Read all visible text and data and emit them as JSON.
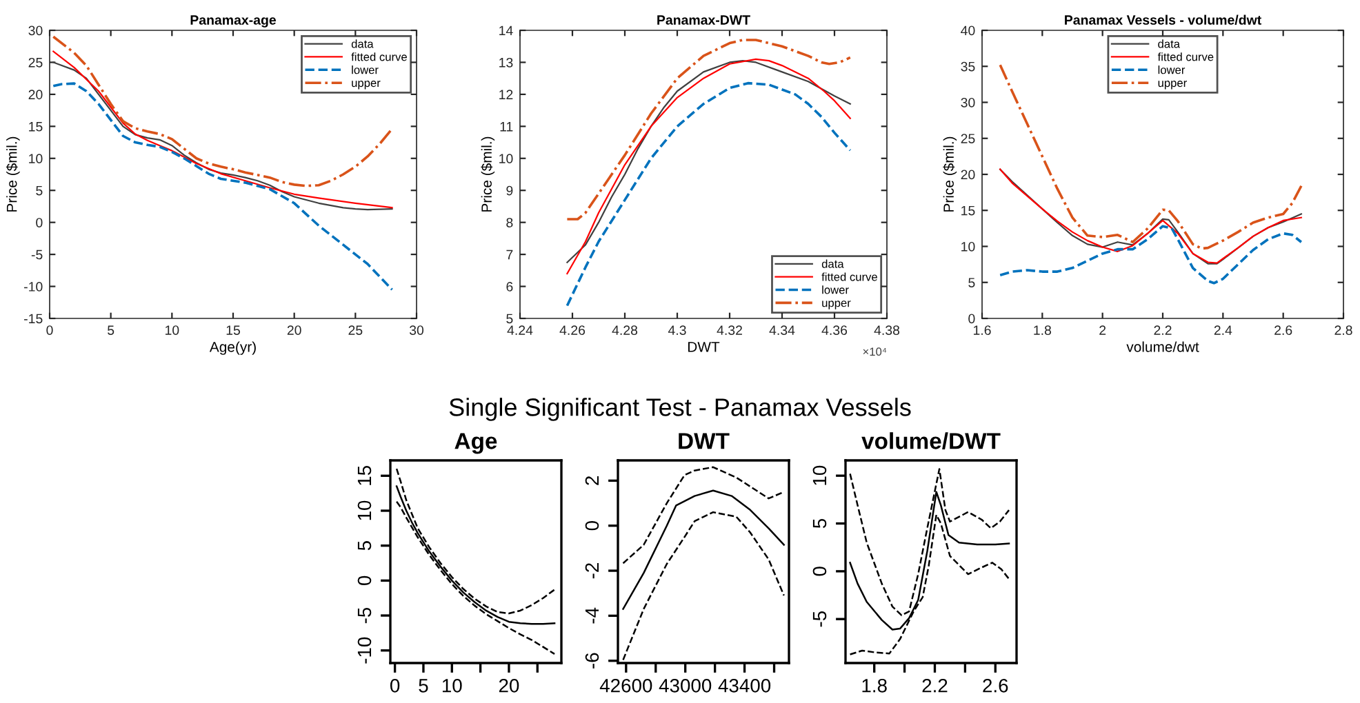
{
  "chart_data": [
    {
      "type": "line",
      "title": "Panamax-age",
      "xlabel": "Age(yr)",
      "ylabel": "Price ($mil.)",
      "xlim": [
        0,
        30
      ],
      "ylim": [
        -15,
        30
      ],
      "xticks": [
        0,
        5,
        10,
        15,
        20,
        25,
        30
      ],
      "yticks": [
        -15,
        -10,
        -5,
        0,
        5,
        10,
        15,
        20,
        25,
        30
      ],
      "legend": "top right",
      "series": [
        {
          "name": "data",
          "color": "#404040",
          "line_style": "solid",
          "x": [
            0.3,
            2,
            3,
            4,
            5,
            6,
            7,
            8,
            9,
            10,
            11,
            12,
            13,
            14,
            15,
            16,
            17,
            18,
            19,
            20,
            22,
            24,
            25,
            26,
            28
          ],
          "values": [
            25,
            23.8,
            22.5,
            20,
            17.5,
            15,
            13.7,
            13.2,
            12.9,
            12,
            10.5,
            9.3,
            8.3,
            7.7,
            7.4,
            7,
            6.5,
            5.8,
            4.8,
            4,
            3,
            2.3,
            2.1,
            2,
            2.1
          ]
        },
        {
          "name": "fitted curve",
          "color": "#ff0000",
          "line_style": "solid",
          "x": [
            0.3,
            2,
            4,
            5,
            6,
            7,
            8,
            9,
            10,
            12,
            14,
            16,
            18,
            20,
            22,
            25,
            28
          ],
          "values": [
            26.7,
            24.2,
            20.5,
            18,
            15.5,
            13.8,
            12.8,
            12,
            11.2,
            9.2,
            7.6,
            6.5,
            5.4,
            4.4,
            3.8,
            3,
            2.3
          ]
        },
        {
          "name": "lower",
          "color": "#0072bd",
          "line_style": "dashed",
          "x": [
            0.3,
            1,
            2,
            3,
            4,
            5,
            6,
            7,
            8,
            9,
            10,
            11,
            12,
            13,
            14,
            16,
            18,
            20,
            22,
            24,
            26,
            28
          ],
          "values": [
            21.3,
            21.6,
            21.7,
            20.5,
            18.5,
            16,
            13.5,
            12.5,
            12.1,
            11.8,
            11,
            10,
            8.8,
            7.6,
            6.8,
            6.2,
            5.2,
            3,
            -0.5,
            -3.5,
            -6.5,
            -10.5
          ]
        },
        {
          "name": "upper",
          "color": "#d95319",
          "line_style": "dashdot",
          "x": [
            0.3,
            2,
            3,
            4,
            5,
            6,
            7,
            8,
            9,
            10,
            11,
            12,
            13,
            14,
            15,
            16,
            18,
            19,
            20,
            21,
            22,
            23,
            24,
            25,
            26,
            27,
            28
          ],
          "values": [
            29,
            26.5,
            24.5,
            21.5,
            18.5,
            15.8,
            14.7,
            14.2,
            13.8,
            13,
            11.5,
            10,
            9.2,
            8.7,
            8.3,
            7.8,
            7,
            6.3,
            5.9,
            5.7,
            5.8,
            6.5,
            7.5,
            8.7,
            10.3,
            12.3,
            14.6
          ]
        }
      ]
    },
    {
      "type": "line",
      "title": "Panamax-DWT",
      "xlabel": "DWT",
      "ylabel": "Price ($mil.)",
      "annotations": [
        "×10⁴"
      ],
      "xlim": [
        4.24,
        4.38
      ],
      "ylim": [
        5,
        14
      ],
      "xticks": [
        4.24,
        4.26,
        4.28,
        4.3,
        4.32,
        4.34,
        4.36,
        4.38
      ],
      "yticks": [
        5,
        6,
        7,
        8,
        9,
        10,
        11,
        12,
        13,
        14
      ],
      "legend": "bottom right",
      "series": [
        {
          "name": "data",
          "color": "#404040",
          "line_style": "solid",
          "x": [
            4.258,
            4.265,
            4.27,
            4.275,
            4.28,
            4.285,
            4.29,
            4.295,
            4.3,
            4.31,
            4.32,
            4.325,
            4.33,
            4.34,
            4.35,
            4.36,
            4.366
          ],
          "values": [
            6.75,
            7.3,
            8,
            8.8,
            9.5,
            10.3,
            11,
            11.6,
            12.1,
            12.7,
            13,
            13.05,
            13,
            12.7,
            12.4,
            11.95,
            11.7
          ]
        },
        {
          "name": "fitted curve",
          "color": "#ff0000",
          "line_style": "solid",
          "x": [
            4.258,
            4.265,
            4.27,
            4.28,
            4.29,
            4.3,
            4.31,
            4.32,
            4.33,
            4.335,
            4.34,
            4.35,
            4.356,
            4.36,
            4.366
          ],
          "values": [
            6.4,
            7.4,
            8.3,
            9.8,
            11,
            11.9,
            12.5,
            12.95,
            13.1,
            13.05,
            12.9,
            12.5,
            12.1,
            11.8,
            11.25
          ]
        },
        {
          "name": "lower",
          "color": "#0072bd",
          "line_style": "dashed",
          "x": [
            4.258,
            4.265,
            4.27,
            4.28,
            4.29,
            4.3,
            4.31,
            4.32,
            4.327,
            4.335,
            4.345,
            4.35,
            4.355,
            4.36,
            4.366
          ],
          "values": [
            5.4,
            6.6,
            7.4,
            8.7,
            10,
            11,
            11.7,
            12.2,
            12.35,
            12.3,
            12,
            11.7,
            11.3,
            10.8,
            10.25
          ]
        },
        {
          "name": "upper",
          "color": "#d95319",
          "line_style": "dashdot",
          "x": [
            4.258,
            4.262,
            4.265,
            4.27,
            4.28,
            4.29,
            4.3,
            4.31,
            4.32,
            4.325,
            4.33,
            4.34,
            4.35,
            4.355,
            4.358,
            4.362,
            4.366
          ],
          "values": [
            8.1,
            8.1,
            8.3,
            8.9,
            10.1,
            11.4,
            12.5,
            13.2,
            13.6,
            13.7,
            13.7,
            13.5,
            13.2,
            13,
            12.95,
            13,
            13.15
          ]
        }
      ]
    },
    {
      "type": "line",
      "title": "Panamax Vessels - volume/dwt",
      "xlabel": "volume/dwt",
      "ylabel": "Price ($mil.)",
      "xlim": [
        1.6,
        2.8
      ],
      "ylim": [
        0,
        40
      ],
      "xticks": [
        1.6,
        1.8,
        2,
        2.2,
        2.4,
        2.6,
        2.8
      ],
      "yticks": [
        0,
        5,
        10,
        15,
        20,
        25,
        30,
        35,
        40
      ],
      "legend": "top",
      "series": [
        {
          "name": "data",
          "color": "#404040",
          "line_style": "solid",
          "x": [
            1.66,
            1.7,
            1.8,
            1.85,
            1.9,
            1.95,
            2.0,
            2.05,
            2.1,
            2.15,
            2.2,
            2.22,
            2.25,
            2.3,
            2.35,
            2.38,
            2.4,
            2.45,
            2.5,
            2.55,
            2.6,
            2.66
          ],
          "values": [
            20.7,
            19,
            15.2,
            13.3,
            11.5,
            10.3,
            9.9,
            10.6,
            10.2,
            11.8,
            13.8,
            13.7,
            12,
            9,
            7.6,
            7.6,
            8.2,
            9.8,
            11.4,
            12.6,
            13.4,
            14.5
          ]
        },
        {
          "name": "fitted curve",
          "color": "#ff0000",
          "line_style": "solid",
          "x": [
            1.66,
            1.7,
            1.8,
            1.85,
            1.9,
            1.95,
            2.0,
            2.05,
            2.1,
            2.15,
            2.2,
            2.25,
            2.3,
            2.35,
            2.38,
            2.4,
            2.45,
            2.5,
            2.55,
            2.6,
            2.66
          ],
          "values": [
            20.7,
            18.8,
            15.2,
            13.5,
            12,
            10.8,
            9.9,
            9.3,
            10.1,
            11.8,
            13.6,
            11.8,
            9,
            7.8,
            7.7,
            8.3,
            9.8,
            11.4,
            12.6,
            13.6,
            14
          ]
        },
        {
          "name": "lower",
          "color": "#0072bd",
          "line_style": "dashed",
          "x": [
            1.66,
            1.7,
            1.75,
            1.8,
            1.85,
            1.9,
            1.95,
            2.0,
            2.05,
            2.1,
            2.15,
            2.2,
            2.23,
            2.25,
            2.3,
            2.35,
            2.37,
            2.4,
            2.45,
            2.5,
            2.55,
            2.6,
            2.63,
            2.66
          ],
          "values": [
            6,
            6.5,
            6.7,
            6.5,
            6.5,
            7,
            8,
            9,
            9.6,
            9.6,
            11,
            12.8,
            12.5,
            11,
            7,
            5.2,
            4.9,
            5.5,
            7.5,
            9.5,
            11,
            11.8,
            11.6,
            10.6
          ]
        },
        {
          "name": "upper",
          "color": "#d95319",
          "line_style": "dashdot",
          "x": [
            1.66,
            1.7,
            1.75,
            1.8,
            1.85,
            1.9,
            1.95,
            2.0,
            2.05,
            2.1,
            2.15,
            2.2,
            2.22,
            2.25,
            2.3,
            2.33,
            2.35,
            2.4,
            2.45,
            2.5,
            2.55,
            2.6,
            2.63,
            2.66
          ],
          "values": [
            35.2,
            31.5,
            27,
            22.5,
            18,
            14,
            11.5,
            11.3,
            11.6,
            10.6,
            12.5,
            15.1,
            15,
            13.5,
            10.3,
            9.7,
            9.8,
            10.8,
            12,
            13.3,
            14,
            14.5,
            16,
            18.4
          ]
        }
      ]
    },
    {
      "type": "line",
      "title": "Age",
      "annotations": [
        "Single Significant Test - Panamax Vessels"
      ],
      "xlim": [
        -0.8,
        29.2
      ],
      "ylim": [
        -11.8,
        17.2
      ],
      "xticks": [
        0,
        5,
        10,
        {
          "value": 15,
          "label": null
        },
        20,
        {
          "value": 25,
          "label": null
        }
      ],
      "yticks": [
        -10,
        -5,
        0,
        5,
        10,
        15
      ],
      "series": [
        {
          "color": "#000000",
          "line_style": "solid",
          "x": [
            0.3,
            1,
            2,
            3,
            4,
            5,
            6,
            8,
            10,
            12,
            14,
            16,
            18,
            20,
            22,
            24,
            26,
            28
          ],
          "values": [
            13.5,
            12,
            10,
            8.3,
            6.8,
            5.5,
            4.2,
            2,
            0,
            -1.7,
            -3.1,
            -4.3,
            -5.2,
            -5.9,
            -6.1,
            -6.2,
            -6.2,
            -6.1
          ]
        },
        {
          "color": "#000000",
          "line_style": "dashed",
          "x": [
            0.3,
            1,
            2,
            4,
            6,
            8,
            10,
            12,
            14,
            16,
            18,
            20,
            22,
            24,
            26,
            28
          ],
          "values": [
            16,
            14.2,
            11.5,
            7.5,
            4.8,
            2.5,
            0.5,
            -1.2,
            -2.6,
            -3.7,
            -4.5,
            -4.7,
            -4.3,
            -3.5,
            -2.5,
            -1.3
          ]
        },
        {
          "color": "#000000",
          "line_style": "dashed",
          "x": [
            0.3,
            1,
            2,
            4,
            6,
            8,
            10,
            12,
            14,
            16,
            18,
            20,
            22,
            24,
            26,
            28
          ],
          "values": [
            11.3,
            10.5,
            9,
            6.2,
            3.7,
            1.5,
            -0.5,
            -2.2,
            -3.6,
            -4.8,
            -5.8,
            -6.8,
            -7.7,
            -8.5,
            -9.5,
            -10.5
          ]
        }
      ]
    },
    {
      "type": "line",
      "title": "DWT",
      "xlim": [
        42545,
        43700
      ],
      "ylim": [
        -6.1,
        2.9
      ],
      "xticks": [
        42600,
        {
          "value": 42800,
          "label": null
        },
        43000,
        {
          "value": 43200,
          "label": null
        },
        43400,
        {
          "value": 43600,
          "label": null
        }
      ],
      "yticks": [
        -6,
        -4,
        -2,
        0,
        2
      ],
      "series": [
        {
          "color": "#000000",
          "line_style": "solid",
          "x": [
            42580,
            42719,
            42875,
            42938,
            43063,
            43188,
            43313,
            43438,
            43563,
            43666
          ],
          "values": [
            -3.7,
            -2.1,
            0,
            0.9,
            1.32,
            1.56,
            1.32,
            0.7,
            -0.12,
            -0.85
          ]
        },
        {
          "color": "#000000",
          "line_style": "dashed",
          "x": [
            42580,
            42719,
            42875,
            42995,
            43063,
            43188,
            43344,
            43563,
            43666
          ],
          "values": [
            -1.67,
            -0.85,
            1,
            2.25,
            2.45,
            2.6,
            2.14,
            1.21,
            1.5
          ]
        },
        {
          "color": "#000000",
          "line_style": "dashed",
          "x": [
            42580,
            42719,
            42875,
            42995,
            43063,
            43188,
            43344,
            43438,
            43563,
            43666
          ],
          "values": [
            -5.96,
            -3.7,
            -1.7,
            -0.5,
            0.2,
            0.6,
            0.4,
            -0.3,
            -1.5,
            -3.1
          ]
        }
      ]
    },
    {
      "type": "line",
      "title": "volume/DWT",
      "xlim": [
        1.61,
        2.74
      ],
      "ylim": [
        -9.6,
        11.6
      ],
      "xticks": [
        1.8,
        {
          "value": 2.0,
          "label": null
        },
        2.2,
        {
          "value": 2.4,
          "label": null
        },
        2.6
      ],
      "yticks": [
        -5,
        0,
        5,
        10
      ],
      "series": [
        {
          "color": "#000000",
          "line_style": "solid",
          "x": [
            1.64,
            1.69,
            1.75,
            1.85,
            1.92,
            1.97,
            2.03,
            2.09,
            2.15,
            2.21,
            2.24,
            2.29,
            2.36,
            2.48,
            2.6,
            2.69
          ],
          "values": [
            0.9,
            -1.3,
            -3.2,
            -5.1,
            -6.1,
            -6,
            -4.9,
            -3,
            2.1,
            8.3,
            6.9,
            3.8,
            3,
            2.8,
            2.8,
            2.9
          ]
        },
        {
          "color": "#000000",
          "line_style": "dashed",
          "x": [
            1.64,
            1.69,
            1.75,
            1.85,
            1.92,
            1.98,
            2.03,
            2.09,
            2.15,
            2.23,
            2.27,
            2.3,
            2.42,
            2.51,
            2.57,
            2.63,
            2.69
          ],
          "values": [
            10.2,
            6.9,
            3,
            -1.3,
            -3.7,
            -4.6,
            -4.2,
            -0.3,
            4.5,
            10.7,
            6.4,
            5.2,
            6.2,
            5.4,
            4.5,
            5.2,
            6.4
          ]
        },
        {
          "color": "#000000",
          "line_style": "dashed",
          "x": [
            1.64,
            1.72,
            1.81,
            1.9,
            1.97,
            2.06,
            2.12,
            2.16,
            2.21,
            2.24,
            2.3,
            2.42,
            2.51,
            2.58,
            2.64,
            2.69
          ],
          "values": [
            -8.7,
            -8.3,
            -8.5,
            -8.6,
            -7.1,
            -4.2,
            -2.7,
            0.6,
            5.9,
            5,
            1.6,
            -0.3,
            0.4,
            0.9,
            0.2,
            -0.8
          ]
        }
      ]
    }
  ]
}
